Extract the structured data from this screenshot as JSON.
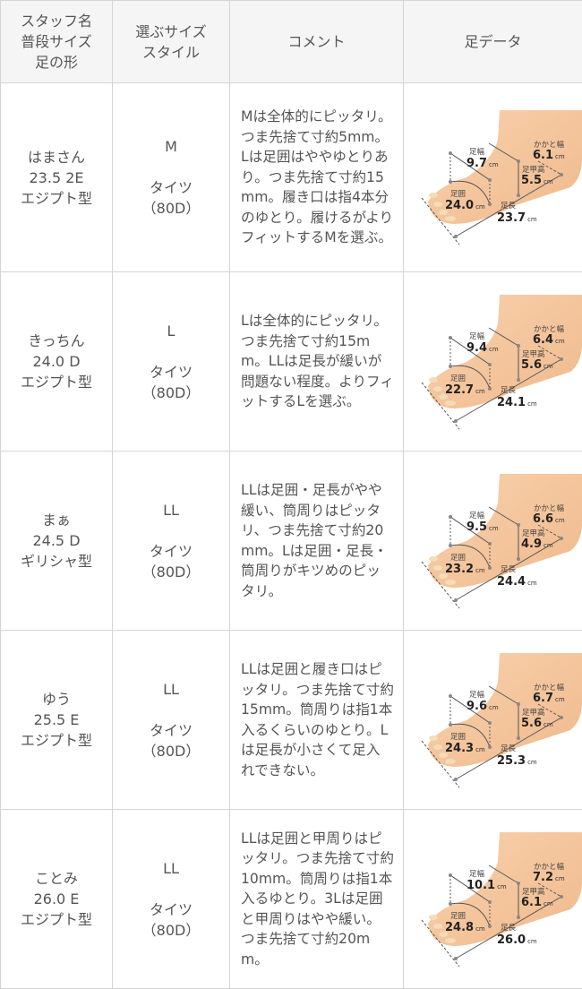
{
  "header": {
    "col1": [
      "スタッフ名",
      "普段サイズ",
      "足の形"
    ],
    "col2": [
      "選ぶサイズ",
      "スタイル"
    ],
    "col3": "コメント",
    "col4": "足データ"
  },
  "foot_labels": {
    "width": "足幅",
    "heel": "かかと幅",
    "instep": "足甲高",
    "girth": "足囲",
    "length": "足長",
    "unit": "cm"
  },
  "colors": {
    "border": "#d4d4d4",
    "header_bg": "#f5f5f5",
    "text": "#555555",
    "skin": "#f6c9a0"
  },
  "rows": [
    {
      "name": "はまさん",
      "usual": "23.5 2E",
      "shape": "エジプト型",
      "size": "M",
      "style": "タイツ",
      "denier": "（80D）",
      "comment": "Mは全体的にピッタリ。つま先捨て寸約5mm。Lは足囲はややゆとりあり。つま先捨て寸約15mm。履き口は指4本分のゆとり。履けるがよりフィットするMを選ぶ。",
      "foot": {
        "width": "9.7",
        "heel": "6.1",
        "instep": "5.5",
        "girth": "24.0",
        "length": "23.7"
      }
    },
    {
      "name": "きっちん",
      "usual": "24.0 D",
      "shape": "エジプト型",
      "size": "L",
      "style": "タイツ",
      "denier": "（80D）",
      "comment": "Lは全体的にピッタリ。つま先捨て寸約15mm。LLは足長が緩いが問題ない程度。よりフィットするLを選ぶ。",
      "foot": {
        "width": "9.4",
        "heel": "6.4",
        "instep": "5.6",
        "girth": "22.7",
        "length": "24.1"
      }
    },
    {
      "name": "まぁ",
      "usual": "24.5 D",
      "shape": "ギリシャ型",
      "size": "LL",
      "style": "タイツ",
      "denier": "（80D）",
      "comment": "LLは足囲・足長がやや緩い、筒周りはピッタリ、つま先捨て寸約20mm。Lは足囲・足長・筒周りがキツめのピッタリ。",
      "foot": {
        "width": "9.5",
        "heel": "6.6",
        "instep": "4.9",
        "girth": "23.2",
        "length": "24.4"
      }
    },
    {
      "name": "ゆう",
      "usual": "25.5 E",
      "shape": "エジプト型",
      "size": "LL",
      "style": "タイツ",
      "denier": "（80D）",
      "comment": "LLは足囲と履き口はピッタリ。つま先捨て寸約15mm。筒周りは指1本入るくらいのゆとり。Lは足長が小さくて足入れできない。",
      "foot": {
        "width": "9.6",
        "heel": "6.7",
        "instep": "5.6",
        "girth": "24.3",
        "length": "25.3"
      }
    },
    {
      "name": "ことみ",
      "usual": "26.0 E",
      "shape": "エジプト型",
      "size": "LL",
      "style": "タイツ",
      "denier": "（80D）",
      "comment": "LLは足囲と甲周りはピッタリ。つま先捨て寸約10mm。筒周りは指1本入るゆとり。3Lは足囲と甲周りはやや緩い。つま先捨て寸約20mm。",
      "foot": {
        "width": "10.1",
        "heel": "7.2",
        "instep": "6.1",
        "girth": "24.8",
        "length": "26.0"
      }
    }
  ]
}
